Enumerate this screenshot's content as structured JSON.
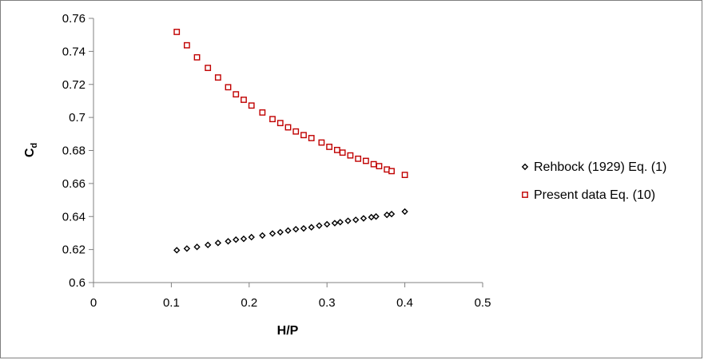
{
  "chart_data": {
    "type": "scatter",
    "title": "",
    "xlabel": "H/P",
    "ylabel_main": "C",
    "ylabel_sub": "d",
    "xlim": [
      0,
      0.5
    ],
    "ylim": [
      0.6,
      0.76
    ],
    "x_ticks": [
      "0",
      "0.1",
      "0.2",
      "0.3",
      "0.4",
      "0.5"
    ],
    "y_ticks": [
      "0.6",
      "0.62",
      "0.64",
      "0.66",
      "0.68",
      "0.7",
      "0.72",
      "0.74",
      "0.76"
    ],
    "grid": false,
    "legend_position": "right",
    "series": [
      {
        "name": "Rehbock (1929) Eq. (1)",
        "marker": "diamond",
        "color": "#000000",
        "points": [
          [
            0.107,
            0.6196
          ],
          [
            0.12,
            0.6206
          ],
          [
            0.133,
            0.6216
          ],
          [
            0.147,
            0.6228
          ],
          [
            0.16,
            0.624
          ],
          [
            0.173,
            0.625
          ],
          [
            0.183,
            0.626
          ],
          [
            0.193,
            0.6265
          ],
          [
            0.203,
            0.6275
          ],
          [
            0.217,
            0.6285
          ],
          [
            0.23,
            0.6297
          ],
          [
            0.24,
            0.6305
          ],
          [
            0.25,
            0.6315
          ],
          [
            0.26,
            0.6323
          ],
          [
            0.27,
            0.6328
          ],
          [
            0.28,
            0.6335
          ],
          [
            0.29,
            0.6345
          ],
          [
            0.3,
            0.6353
          ],
          [
            0.31,
            0.636
          ],
          [
            0.317,
            0.6366
          ],
          [
            0.327,
            0.6374
          ],
          [
            0.337,
            0.638
          ],
          [
            0.347,
            0.6389
          ],
          [
            0.357,
            0.6396
          ],
          [
            0.363,
            0.64
          ],
          [
            0.377,
            0.641
          ],
          [
            0.383,
            0.6415
          ],
          [
            0.4,
            0.643
          ]
        ]
      },
      {
        "name": "Present data Eq. (10)",
        "marker": "square",
        "color": "#c00000",
        "points": [
          [
            0.107,
            0.7518
          ],
          [
            0.12,
            0.7437
          ],
          [
            0.133,
            0.7364
          ],
          [
            0.147,
            0.73
          ],
          [
            0.16,
            0.7242
          ],
          [
            0.173,
            0.7183
          ],
          [
            0.183,
            0.714
          ],
          [
            0.193,
            0.7107
          ],
          [
            0.203,
            0.7072
          ],
          [
            0.217,
            0.703
          ],
          [
            0.23,
            0.699
          ],
          [
            0.24,
            0.6966
          ],
          [
            0.25,
            0.694
          ],
          [
            0.26,
            0.6915
          ],
          [
            0.27,
            0.6893
          ],
          [
            0.28,
            0.6875
          ],
          [
            0.293,
            0.6848
          ],
          [
            0.303,
            0.6822
          ],
          [
            0.313,
            0.6803
          ],
          [
            0.32,
            0.6787
          ],
          [
            0.33,
            0.677
          ],
          [
            0.34,
            0.675
          ],
          [
            0.35,
            0.6737
          ],
          [
            0.36,
            0.6717
          ],
          [
            0.367,
            0.6705
          ],
          [
            0.377,
            0.6685
          ],
          [
            0.383,
            0.6675
          ],
          [
            0.4,
            0.6652
          ]
        ]
      }
    ]
  }
}
